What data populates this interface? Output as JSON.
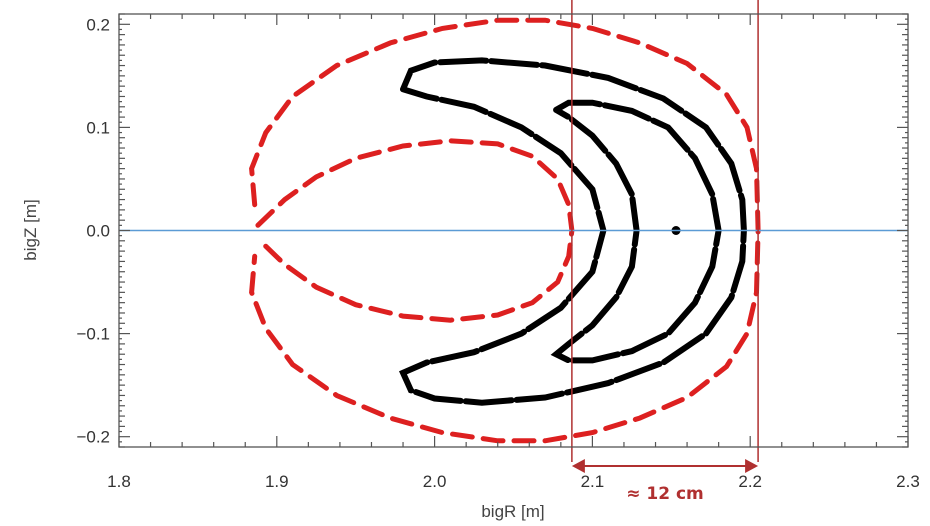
{
  "chart_data": {
    "type": "scatter",
    "title": "",
    "xlabel": "bigR [m]",
    "ylabel": "bigZ [m]",
    "xlim": [
      1.8,
      2.3
    ],
    "ylim": [
      -0.21,
      0.21
    ],
    "xticks": [
      "1.8",
      "1.9",
      "2.0",
      "2.1",
      "2.2",
      "2.3"
    ],
    "yticks": [
      "−0.2",
      "−0.1",
      "0.0",
      "0.1",
      "0.2"
    ],
    "xtick_values": [
      1.8,
      1.9,
      2.0,
      2.1,
      2.2,
      2.3
    ],
    "ytick_values": [
      -0.2,
      -0.1,
      0.0,
      0.1,
      0.2
    ],
    "grid": false,
    "legend": "none",
    "colors": {
      "outer_curves": "#dd2020",
      "inner_curves": "#000000",
      "midplane": "#5b9bd5",
      "vertical_markers": "#b03030",
      "annotation": "#b03030"
    },
    "series": [
      {
        "color": "#dd2020",
        "shape": "outer_lobe",
        "points": [
          [
            1.886,
            0.025
          ],
          [
            1.884,
            0.06
          ],
          [
            1.893,
            0.095
          ],
          [
            1.91,
            0.13
          ],
          [
            1.938,
            0.16
          ],
          [
            1.972,
            0.182
          ],
          [
            2.005,
            0.196
          ],
          [
            2.04,
            0.204
          ],
          [
            2.07,
            0.204
          ],
          [
            2.1,
            0.196
          ],
          [
            2.13,
            0.182
          ],
          [
            2.16,
            0.162
          ],
          [
            2.185,
            0.132
          ],
          [
            2.198,
            0.1
          ],
          [
            2.204,
            0.06
          ],
          [
            2.205,
            0.0
          ],
          [
            2.204,
            -0.06
          ],
          [
            2.198,
            -0.1
          ],
          [
            2.185,
            -0.132
          ],
          [
            2.16,
            -0.162
          ],
          [
            2.13,
            -0.182
          ],
          [
            2.1,
            -0.196
          ],
          [
            2.07,
            -0.204
          ],
          [
            2.04,
            -0.204
          ],
          [
            2.005,
            -0.196
          ],
          [
            1.972,
            -0.182
          ],
          [
            1.938,
            -0.16
          ],
          [
            1.91,
            -0.13
          ],
          [
            1.893,
            -0.095
          ],
          [
            1.884,
            -0.06
          ],
          [
            1.886,
            -0.025
          ]
        ]
      },
      {
        "color": "#dd2020",
        "shape": "inner_lobe",
        "points": [
          [
            1.888,
            0.005
          ],
          [
            1.905,
            0.03
          ],
          [
            1.925,
            0.052
          ],
          [
            1.95,
            0.07
          ],
          [
            1.98,
            0.082
          ],
          [
            2.01,
            0.087
          ],
          [
            2.04,
            0.084
          ],
          [
            2.062,
            0.072
          ],
          [
            2.078,
            0.05
          ],
          [
            2.085,
            0.025
          ],
          [
            2.087,
            0.0
          ],
          [
            2.085,
            -0.025
          ],
          [
            2.078,
            -0.05
          ],
          [
            2.062,
            -0.07
          ],
          [
            2.04,
            -0.082
          ],
          [
            2.01,
            -0.087
          ],
          [
            1.98,
            -0.083
          ],
          [
            1.95,
            -0.072
          ],
          [
            1.925,
            -0.055
          ],
          [
            1.905,
            -0.033
          ],
          [
            1.888,
            -0.008
          ]
        ]
      },
      {
        "color": "#000000",
        "shape": "outer_crescent",
        "points": [
          [
            1.98,
            0.137
          ],
          [
            1.985,
            0.155
          ],
          [
            2.0,
            0.163
          ],
          [
            2.03,
            0.165
          ],
          [
            2.07,
            0.16
          ],
          [
            2.11,
            0.148
          ],
          [
            2.145,
            0.128
          ],
          [
            2.172,
            0.1
          ],
          [
            2.188,
            0.065
          ],
          [
            2.195,
            0.03
          ],
          [
            2.196,
            0.0
          ],
          [
            2.195,
            -0.03
          ],
          [
            2.188,
            -0.065
          ],
          [
            2.172,
            -0.1
          ],
          [
            2.145,
            -0.128
          ],
          [
            2.11,
            -0.148
          ],
          [
            2.07,
            -0.162
          ],
          [
            2.03,
            -0.167
          ],
          [
            2.0,
            -0.163
          ],
          [
            1.985,
            -0.155
          ],
          [
            1.98,
            -0.138
          ],
          [
            1.995,
            -0.128
          ],
          [
            2.025,
            -0.118
          ],
          [
            2.055,
            -0.1
          ],
          [
            2.08,
            -0.075
          ],
          [
            2.1,
            -0.04
          ],
          [
            2.107,
            0.0
          ],
          [
            2.1,
            0.04
          ],
          [
            2.08,
            0.075
          ],
          [
            2.055,
            0.1
          ],
          [
            2.025,
            0.12
          ],
          [
            1.995,
            0.13
          ],
          [
            1.98,
            0.137
          ]
        ]
      },
      {
        "color": "#000000",
        "shape": "inner_crescent",
        "points": [
          [
            2.077,
            0.117
          ],
          [
            2.085,
            0.124
          ],
          [
            2.1,
            0.124
          ],
          [
            2.125,
            0.116
          ],
          [
            2.148,
            0.1
          ],
          [
            2.165,
            0.07
          ],
          [
            2.176,
            0.035
          ],
          [
            2.18,
            0.0
          ],
          [
            2.176,
            -0.035
          ],
          [
            2.165,
            -0.07
          ],
          [
            2.148,
            -0.1
          ],
          [
            2.125,
            -0.117
          ],
          [
            2.1,
            -0.126
          ],
          [
            2.085,
            -0.126
          ],
          [
            2.077,
            -0.12
          ],
          [
            2.085,
            -0.11
          ],
          [
            2.1,
            -0.092
          ],
          [
            2.115,
            -0.065
          ],
          [
            2.125,
            -0.035
          ],
          [
            2.128,
            0.0
          ],
          [
            2.125,
            0.035
          ],
          [
            2.115,
            0.065
          ],
          [
            2.1,
            0.092
          ],
          [
            2.085,
            0.11
          ],
          [
            2.077,
            0.117
          ]
        ]
      }
    ],
    "center_point": [
      2.153,
      0.0
    ],
    "horizontal_line_y": 0.0,
    "vertical_lines_x": [
      2.087,
      2.205
    ],
    "annotation_text": "≈ 12 cm"
  }
}
